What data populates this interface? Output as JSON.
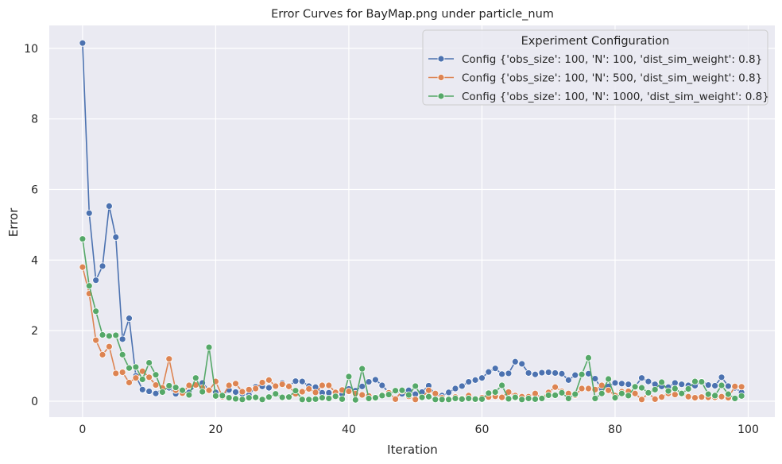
{
  "chart_data": {
    "type": "line",
    "title": "Error Curves for BayMap.png under particle_num",
    "xlabel": "Iteration",
    "ylabel": "Error",
    "xlim": [
      -5,
      104
    ],
    "ylim": [
      -0.45,
      10.65
    ],
    "xticks": [
      0,
      20,
      40,
      60,
      80,
      100
    ],
    "yticks": [
      0,
      2,
      4,
      6,
      8,
      10
    ],
    "grid": true,
    "legend": {
      "title": "Experiment Configuration",
      "placement": "top-right"
    },
    "x": [
      0,
      1,
      2,
      3,
      4,
      5,
      6,
      7,
      8,
      9,
      10,
      11,
      12,
      13,
      14,
      15,
      16,
      17,
      18,
      19,
      20,
      21,
      22,
      23,
      24,
      25,
      26,
      27,
      28,
      29,
      30,
      31,
      32,
      33,
      34,
      35,
      36,
      37,
      38,
      39,
      40,
      41,
      42,
      43,
      44,
      45,
      46,
      47,
      48,
      49,
      50,
      51,
      52,
      53,
      54,
      55,
      56,
      57,
      58,
      59,
      60,
      61,
      62,
      63,
      64,
      65,
      66,
      67,
      68,
      69,
      70,
      71,
      72,
      73,
      74,
      75,
      76,
      77,
      78,
      79,
      80,
      81,
      82,
      83,
      84,
      85,
      86,
      87,
      88,
      89,
      90,
      91,
      92,
      93,
      94,
      95,
      96,
      97,
      98,
      99
    ],
    "series": [
      {
        "name": "Config {'obs_size': 100, 'N': 100, 'dist_sim_weight': 0.8}",
        "color": "#4c72b0",
        "values": [
          10.15,
          5.33,
          3.43,
          3.83,
          5.53,
          4.65,
          1.76,
          2.35,
          0.72,
          0.33,
          0.28,
          0.22,
          0.35,
          0.38,
          0.21,
          0.26,
          0.25,
          0.45,
          0.52,
          0.32,
          0.25,
          0.18,
          0.32,
          0.26,
          0.21,
          0.18,
          0.41,
          0.42,
          0.38,
          0.45,
          0.52,
          0.44,
          0.57,
          0.56,
          0.43,
          0.4,
          0.24,
          0.24,
          0.23,
          0.2,
          0.35,
          0.3,
          0.42,
          0.55,
          0.61,
          0.45,
          0.25,
          0.3,
          0.21,
          0.31,
          0.2,
          0.26,
          0.44,
          0.18,
          0.16,
          0.25,
          0.36,
          0.43,
          0.55,
          0.6,
          0.66,
          0.83,
          0.93,
          0.77,
          0.79,
          1.12,
          1.06,
          0.8,
          0.76,
          0.81,
          0.82,
          0.8,
          0.78,
          0.6,
          0.74,
          0.77,
          0.78,
          0.64,
          0.35,
          0.42,
          0.52,
          0.5,
          0.48,
          0.42,
          0.66,
          0.56,
          0.48,
          0.42,
          0.4,
          0.52,
          0.48,
          0.45,
          0.44,
          0.56,
          0.46,
          0.44,
          0.68,
          0.43,
          0.38,
          0.25
        ]
      },
      {
        "name": "Config {'obs_size': 100, 'N': 500, 'dist_sim_weight': 0.8}",
        "color": "#dd8452",
        "values": [
          3.8,
          3.05,
          1.73,
          1.32,
          1.55,
          0.79,
          0.82,
          0.53,
          0.66,
          0.85,
          0.68,
          0.46,
          0.38,
          1.2,
          0.31,
          0.23,
          0.45,
          0.46,
          0.38,
          0.31,
          0.56,
          0.13,
          0.45,
          0.5,
          0.27,
          0.33,
          0.36,
          0.53,
          0.6,
          0.43,
          0.48,
          0.42,
          0.21,
          0.27,
          0.35,
          0.25,
          0.45,
          0.45,
          0.25,
          0.32,
          0.28,
          0.22,
          0.18,
          0.15,
          0.1,
          0.18,
          0.24,
          0.06,
          0.29,
          0.14,
          0.05,
          0.11,
          0.31,
          0.22,
          0.1,
          0.07,
          0.12,
          0.08,
          0.16,
          0.05,
          0.1,
          0.12,
          0.14,
          0.11,
          0.26,
          0.16,
          0.13,
          0.13,
          0.22,
          0.09,
          0.25,
          0.4,
          0.28,
          0.22,
          0.17,
          0.36,
          0.36,
          0.33,
          0.45,
          0.31,
          0.16,
          0.27,
          0.28,
          0.22,
          0.05,
          0.23,
          0.06,
          0.12,
          0.22,
          0.19,
          0.21,
          0.13,
          0.1,
          0.12,
          0.11,
          0.11,
          0.13,
          0.1,
          0.42,
          0.41
        ]
      },
      {
        "name": "Config {'obs_size': 100, 'N': 1000, 'dist_sim_weight': 0.8}",
        "color": "#55a868",
        "values": [
          4.6,
          3.27,
          2.55,
          1.88,
          1.85,
          1.87,
          1.32,
          0.94,
          0.97,
          0.62,
          1.09,
          0.75,
          0.26,
          0.44,
          0.39,
          0.31,
          0.18,
          0.66,
          0.27,
          1.53,
          0.15,
          0.16,
          0.1,
          0.07,
          0.05,
          0.1,
          0.11,
          0.05,
          0.12,
          0.21,
          0.11,
          0.12,
          0.3,
          0.05,
          0.05,
          0.06,
          0.1,
          0.08,
          0.14,
          0.06,
          0.7,
          0.04,
          0.92,
          0.08,
          0.1,
          0.16,
          0.19,
          0.3,
          0.31,
          0.18,
          0.43,
          0.11,
          0.13,
          0.05,
          0.05,
          0.05,
          0.08,
          0.06,
          0.08,
          0.06,
          0.06,
          0.23,
          0.26,
          0.45,
          0.07,
          0.11,
          0.05,
          0.08,
          0.06,
          0.08,
          0.17,
          0.17,
          0.24,
          0.08,
          0.2,
          0.76,
          1.23,
          0.08,
          0.22,
          0.63,
          0.1,
          0.22,
          0.16,
          0.41,
          0.38,
          0.24,
          0.33,
          0.54,
          0.29,
          0.36,
          0.22,
          0.35,
          0.56,
          0.55,
          0.2,
          0.16,
          0.45,
          0.2,
          0.08,
          0.15
        ]
      }
    ]
  }
}
